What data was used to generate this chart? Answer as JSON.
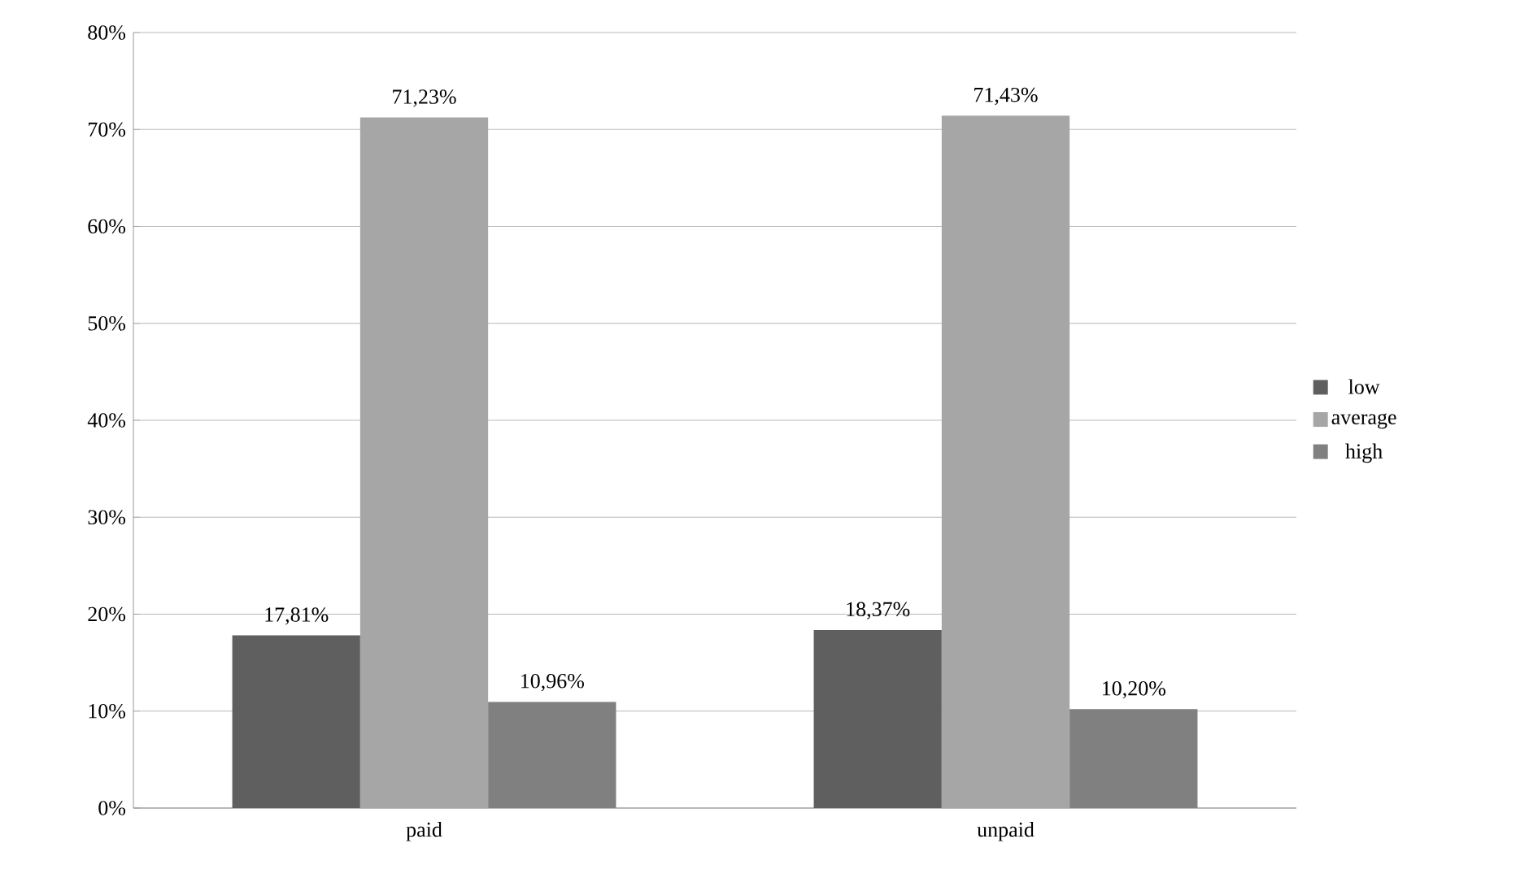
{
  "chart_data": {
    "type": "bar",
    "categories": [
      "paid",
      "unpaid"
    ],
    "series": [
      {
        "name": "low",
        "color": "#5f5f5f",
        "values": [
          17.81,
          18.37
        ],
        "value_labels": [
          "17,81%",
          "18,37%"
        ]
      },
      {
        "name": "average",
        "color": "#a6a6a6",
        "values": [
          71.23,
          71.43
        ],
        "value_labels": [
          "71,23%",
          "71,43%"
        ]
      },
      {
        "name": "high",
        "color": "#808080",
        "values": [
          10.96,
          10.2
        ],
        "value_labels": [
          "10,96%",
          "10,20%"
        ]
      }
    ],
    "ylim": [
      0,
      80
    ],
    "yticks": [
      {
        "value": 0,
        "label": "0%"
      },
      {
        "value": 10,
        "label": "10%"
      },
      {
        "value": 20,
        "label": "20%"
      },
      {
        "value": 30,
        "label": "30%"
      },
      {
        "value": 40,
        "label": "40%"
      },
      {
        "value": 50,
        "label": "50%"
      },
      {
        "value": 60,
        "label": "60%"
      },
      {
        "value": 70,
        "label": "70%"
      },
      {
        "value": 80,
        "label": "80%"
      }
    ],
    "grid": "y",
    "legend": "right"
  }
}
